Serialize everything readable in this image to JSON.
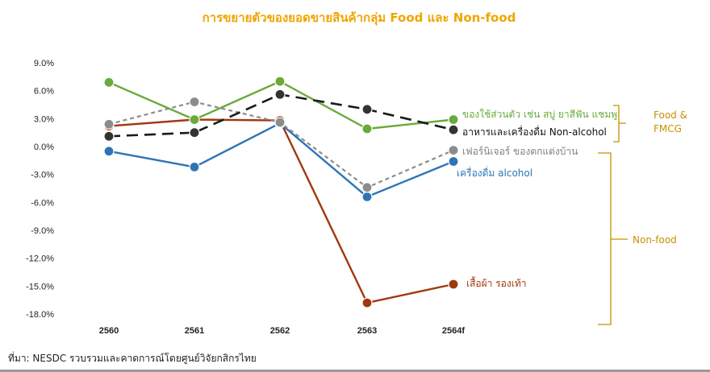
{
  "chart_data": {
    "type": "line",
    "title": "การขยายตัวของยอดขายสินค้ากลุ่ม Food และ Non-food",
    "categories": [
      "2560",
      "2561",
      "2562",
      "2563",
      "2564f"
    ],
    "y_ticks": [
      "9.0%",
      "6.0%",
      "3.0%",
      "0.0%",
      "-3.0%",
      "-6.0%",
      "-9.0%",
      "-12.0%",
      "-15.0%",
      "-18.0%"
    ],
    "ylim": [
      -18,
      9
    ],
    "grid": false,
    "series": [
      {
        "name": "ของใช้ส่วนตัว เช่น สบู่ ยาสีฟัน แชมพู",
        "color": "#6AAA3A",
        "dash": "solid",
        "values": [
          6.9,
          2.9,
          7.0,
          1.9,
          2.9
        ]
      },
      {
        "name": "อาหารและเครื่องดื่ม Non-alcohol",
        "color": "#1a1a1a",
        "dash": "long",
        "values": [
          1.1,
          1.5,
          5.6,
          4.0,
          1.8
        ]
      },
      {
        "name": "เฟอร์นิเจอร์ ของตกแต่งบ้าน",
        "color": "#8C8C8C",
        "dash": "short",
        "values": [
          2.4,
          4.8,
          2.6,
          -4.4,
          -0.4
        ]
      },
      {
        "name": "เครื่องดื่ม alcohol",
        "color": "#2E75B6",
        "dash": "solid",
        "values": [
          -0.5,
          -2.2,
          2.5,
          -5.4,
          -1.6
        ]
      },
      {
        "name": "เสื้อผ้า รองเท้า",
        "color": "#A0380E",
        "dash": "solid",
        "values": [
          2.2,
          2.9,
          2.8,
          -16.8,
          -14.8
        ]
      }
    ],
    "label_colors": [
      "#6AAA3A",
      "#111111",
      "#7F7F7F",
      "#2E75B6",
      "#A0380E"
    ],
    "groups": [
      {
        "label": "Food &\nFMCG",
        "color": "#C89000"
      },
      {
        "label": "Non-food",
        "color": "#C89000"
      }
    ]
  },
  "source": "ที่มา: NESDC รวบรวมและคาดการณ์โดยศูนย์วิจัยกสิกรไทย"
}
